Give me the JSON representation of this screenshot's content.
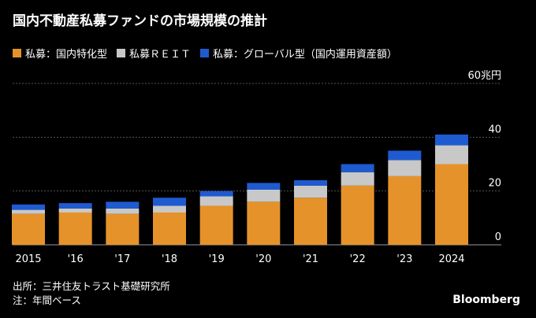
{
  "title": "国内不動産私募ファンドの市場規模の推計",
  "legend": [
    {
      "label": "私募：国内特化型",
      "color": "#e6922a"
    },
    {
      "label": "私募ＲＥＩＴ",
      "color": "#c8c8c8"
    },
    {
      "label": "私募：グローバル型（国内運用資産額）",
      "color": "#1f5bd0"
    }
  ],
  "footer": {
    "source": "出所：三井住友トラスト基礎研究所",
    "note": "注：年間ベース",
    "brand": "Bloomberg"
  },
  "chart_data": {
    "type": "bar",
    "stacked": true,
    "title": "国内不動産私募ファンドの市場規模の推計",
    "xlabel": "",
    "ylabel": "",
    "ylim": [
      0,
      60
    ],
    "yticks": [
      0,
      20,
      40,
      60
    ],
    "ytick_labels": [
      "0",
      "20",
      "40",
      "60兆円"
    ],
    "categories": [
      "2015",
      "'16",
      "'17",
      "'18",
      "'19",
      "'20",
      "'21",
      "'22",
      "'23",
      "2024"
    ],
    "series": [
      {
        "name": "私募：国内特化型",
        "color": "#e6922a",
        "values": [
          11.5,
          12,
          11.5,
          12,
          14.5,
          16,
          17.5,
          22,
          25.5,
          30
        ]
      },
      {
        "name": "私募ＲＥＩＴ",
        "color": "#c8c8c8",
        "values": [
          1.5,
          1.5,
          2,
          2.5,
          3.5,
          4.5,
          4.5,
          5,
          6,
          7
        ]
      },
      {
        "name": "私募：グローバル型（国内運用資産額）",
        "color": "#1f5bd0",
        "values": [
          2,
          2,
          2.5,
          3,
          2,
          2.5,
          2,
          3,
          3.5,
          4
        ]
      }
    ]
  }
}
